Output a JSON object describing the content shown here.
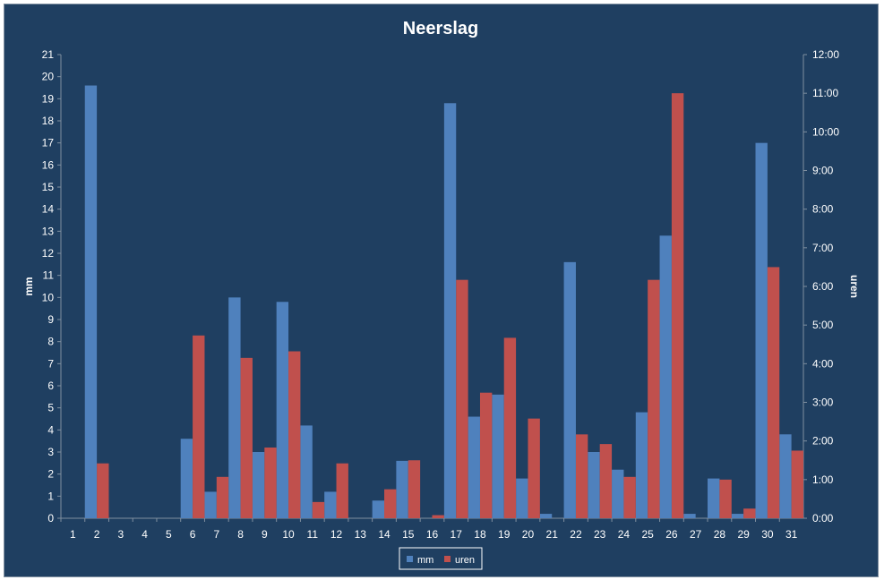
{
  "chart_data": {
    "type": "bar",
    "title": "Neerslag",
    "ylabel": "mm",
    "y2label": "uren",
    "categories": [
      "1",
      "2",
      "3",
      "4",
      "5",
      "6",
      "7",
      "8",
      "9",
      "10",
      "11",
      "12",
      "13",
      "14",
      "15",
      "16",
      "17",
      "18",
      "19",
      "20",
      "21",
      "22",
      "23",
      "24",
      "25",
      "26",
      "27",
      "28",
      "29",
      "30",
      "31"
    ],
    "ylim": [
      0,
      21
    ],
    "y2lim": [
      0,
      12
    ],
    "yticks": [
      "0",
      "1",
      "2",
      "3",
      "4",
      "5",
      "6",
      "7",
      "8",
      "9",
      "10",
      "11",
      "12",
      "13",
      "14",
      "15",
      "16",
      "17",
      "18",
      "19",
      "20",
      "21"
    ],
    "y2ticks": [
      "0:00",
      "1:00",
      "2:00",
      "3:00",
      "4:00",
      "5:00",
      "6:00",
      "7:00",
      "8:00",
      "9:00",
      "10:00",
      "11:00",
      "12:00"
    ],
    "series": [
      {
        "name": "mm",
        "axis": "left",
        "color": "#4f81bd",
        "values": [
          0,
          19.6,
          0,
          0,
          0,
          3.6,
          1.2,
          10.0,
          3.0,
          9.8,
          4.2,
          1.2,
          0,
          0.8,
          2.6,
          0,
          18.8,
          4.6,
          5.6,
          1.8,
          0.2,
          11.6,
          3.0,
          2.2,
          4.8,
          12.8,
          0.2,
          1.8,
          0.2,
          17.0,
          3.8
        ]
      },
      {
        "name": "uren",
        "axis": "right",
        "color": "#c0504d",
        "values": [
          0,
          1.42,
          0,
          0,
          0,
          4.73,
          1.07,
          4.15,
          1.83,
          4.32,
          0.42,
          1.42,
          0,
          0.75,
          1.5,
          0.08,
          6.17,
          3.25,
          4.67,
          2.58,
          0,
          2.17,
          1.92,
          1.07,
          6.17,
          11.0,
          0,
          1.0,
          0.25,
          6.5,
          1.75
        ]
      }
    ],
    "grid": false,
    "legend_position": "bottom"
  }
}
